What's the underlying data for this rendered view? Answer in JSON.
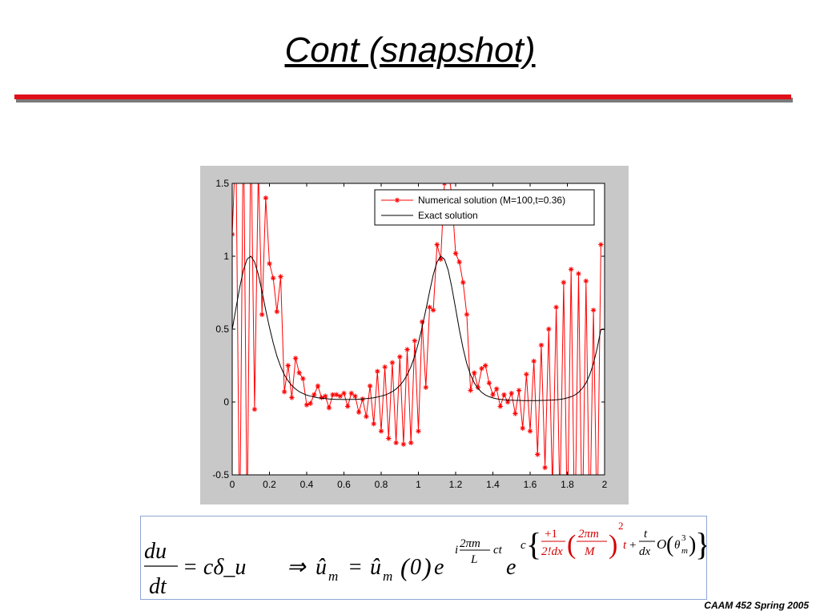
{
  "slide": {
    "title": "Cont (snapshot)",
    "footer": "CAAM 452 Spring 2005",
    "rule_colors": {
      "main": "#e0101a",
      "shadow": "#7a7a7a"
    }
  },
  "chart_data": {
    "type": "line",
    "xlim": [
      0,
      2
    ],
    "ylim": [
      -0.5,
      1.5
    ],
    "x_ticks": [
      "0",
      "0.2",
      "0.4",
      "0.6",
      "0.8",
      "1",
      "1.2",
      "1.4",
      "1.6",
      "1.8",
      "2"
    ],
    "y_ticks": [
      "-0.5",
      "0",
      "0.5",
      "1",
      "1.5"
    ],
    "x_tick_values": [
      0,
      0.2,
      0.4,
      0.6,
      0.8,
      1,
      1.2,
      1.4,
      1.6,
      1.8,
      2
    ],
    "y_tick_values": [
      -0.5,
      0,
      0.5,
      1,
      1.5
    ],
    "legend_position": "top-right",
    "grid": false,
    "series": [
      {
        "name": "Numerical solution (M=100,t=0.36)",
        "color": "#ff0000",
        "marker": "star",
        "x": [
          0,
          0.02,
          0.04,
          0.06,
          0.08,
          0.1,
          0.12,
          0.14,
          0.16,
          0.18,
          0.2,
          0.22,
          0.24,
          0.26,
          0.28,
          0.3,
          0.32,
          0.34,
          0.36,
          0.38,
          0.4,
          0.42,
          0.44,
          0.46,
          0.48,
          0.5,
          0.52,
          0.54,
          0.56,
          0.58,
          0.6,
          0.62,
          0.64,
          0.66,
          0.68,
          0.7,
          0.72,
          0.74,
          0.76,
          0.78,
          0.8,
          0.82,
          0.84,
          0.86,
          0.88,
          0.9,
          0.92,
          0.94,
          0.96,
          0.98,
          1,
          1.02,
          1.04,
          1.06,
          1.08,
          1.1,
          1.12,
          1.14,
          1.16,
          1.18,
          1.2,
          1.22,
          1.24,
          1.26,
          1.28,
          1.3,
          1.32,
          1.34,
          1.36,
          1.38,
          1.4,
          1.42,
          1.44,
          1.46,
          1.48,
          1.5,
          1.52,
          1.54,
          1.56,
          1.58,
          1.6,
          1.62,
          1.64,
          1.66,
          1.68,
          1.7,
          1.72,
          1.74,
          1.76,
          1.78,
          1.8,
          1.82,
          1.84,
          1.86,
          1.88,
          1.9,
          1.92,
          1.94,
          1.96,
          1.98
        ],
        "y": [
          1.15,
          1.8,
          -1.0,
          2.0,
          -0.9,
          1.9,
          -0.05,
          1.6,
          0.6,
          1.4,
          0.95,
          0.85,
          0.62,
          0.86,
          0.07,
          0.25,
          0.03,
          0.3,
          0.2,
          0.16,
          -0.02,
          -0.01,
          0.05,
          0.11,
          0.03,
          0.04,
          -0.04,
          0.05,
          0.05,
          0.04,
          0.06,
          -0.03,
          0.06,
          0.04,
          -0.07,
          0.02,
          -0.1,
          0.11,
          -0.15,
          0.21,
          -0.2,
          0.24,
          -0.25,
          0.27,
          -0.28,
          0.31,
          -0.29,
          0.36,
          -0.28,
          0.42,
          -0.2,
          0.55,
          0.1,
          0.65,
          0.63,
          1.08,
          0.98,
          1.5,
          1.62,
          1.4,
          1.02,
          0.96,
          0.82,
          0.6,
          0.08,
          0.2,
          0.1,
          0.23,
          0.25,
          0.13,
          0.05,
          0.09,
          -0.03,
          0.05,
          0.0,
          0.06,
          -0.08,
          0.08,
          -0.18,
          0.19,
          -0.2,
          0.28,
          -0.36,
          0.39,
          -0.45,
          0.5,
          -0.6,
          0.65,
          -0.7,
          0.82,
          -0.85,
          0.91,
          -0.98,
          0.88,
          -0.95,
          0.83,
          -0.9,
          0.63,
          -0.9,
          1.08
        ]
      },
      {
        "name": "Exact solution",
        "color": "#000000",
        "marker": "none",
        "x": [
          0,
          0.02,
          0.04,
          0.06,
          0.08,
          0.1,
          0.12,
          0.14,
          0.16,
          0.18,
          0.2,
          0.22,
          0.24,
          0.26,
          0.28,
          0.3,
          0.32,
          0.34,
          0.36,
          0.38,
          0.4,
          0.42,
          0.44,
          0.46,
          0.48,
          0.5,
          0.52,
          0.54,
          0.56,
          0.58,
          0.6,
          0.62,
          0.64,
          0.66,
          0.68,
          0.7,
          0.72,
          0.74,
          0.76,
          0.78,
          0.8,
          0.82,
          0.84,
          0.86,
          0.88,
          0.9,
          0.92,
          0.94,
          0.96,
          0.98,
          1,
          1.02,
          1.04,
          1.06,
          1.08,
          1.1,
          1.12,
          1.14,
          1.16,
          1.18,
          1.2,
          1.22,
          1.24,
          1.26,
          1.28,
          1.3,
          1.32,
          1.34,
          1.36,
          1.38,
          1.4,
          1.42,
          1.44,
          1.46,
          1.48,
          1.5,
          1.52,
          1.54,
          1.56,
          1.58,
          1.6,
          1.62,
          1.64,
          1.66,
          1.68,
          1.7,
          1.72,
          1.74,
          1.76,
          1.78,
          1.8,
          1.82,
          1.84,
          1.86,
          1.88,
          1.9,
          1.92,
          1.94,
          1.96,
          1.98,
          2
        ],
        "y": [
          0.497,
          0.641,
          0.784,
          0.905,
          0.981,
          1.0,
          0.961,
          0.874,
          0.758,
          0.632,
          0.512,
          0.405,
          0.315,
          0.243,
          0.187,
          0.145,
          0.113,
          0.089,
          0.071,
          0.058,
          0.047,
          0.04,
          0.034,
          0.029,
          0.026,
          0.023,
          0.021,
          0.019,
          0.018,
          0.018,
          0.017,
          0.017,
          0.018,
          0.018,
          0.019,
          0.021,
          0.023,
          0.026,
          0.029,
          0.034,
          0.04,
          0.047,
          0.058,
          0.071,
          0.089,
          0.113,
          0.145,
          0.187,
          0.243,
          0.315,
          0.405,
          0.512,
          0.632,
          0.758,
          0.874,
          0.961,
          1.0,
          0.981,
          0.905,
          0.784,
          0.641,
          0.497,
          0.368,
          0.264,
          0.186,
          0.131,
          0.093,
          0.066,
          0.048,
          0.036,
          0.028,
          0.022,
          0.018,
          0.015,
          0.013,
          0.012,
          0.011,
          0.011,
          0.01,
          0.01,
          0.01,
          0.01,
          0.01,
          0.011,
          0.011,
          0.012,
          0.013,
          0.015,
          0.018,
          0.022,
          0.028,
          0.036,
          0.048,
          0.066,
          0.093,
          0.131,
          0.186,
          0.264,
          0.368,
          0.497,
          0.497
        ]
      }
    ]
  },
  "equation": {
    "lhs_num": "du⃗",
    "lhs_den": "dt",
    "rhs": "= cδ_u⃗",
    "implies": "⇒",
    "uhat": "û",
    "sub_m": "m",
    "eq": "=",
    "zero": "0",
    "e": "e",
    "i": "i",
    "frac_2pim": "2πm",
    "frac_L": "L",
    "ct": "ct",
    "c": "c",
    "p1": "+1",
    "fact": "2!dx",
    "M": "M",
    "sq": "2",
    "t": "t",
    "plus": "+",
    "dx": "dx",
    "O": "O",
    "theta": "θ",
    "cube": "3"
  }
}
